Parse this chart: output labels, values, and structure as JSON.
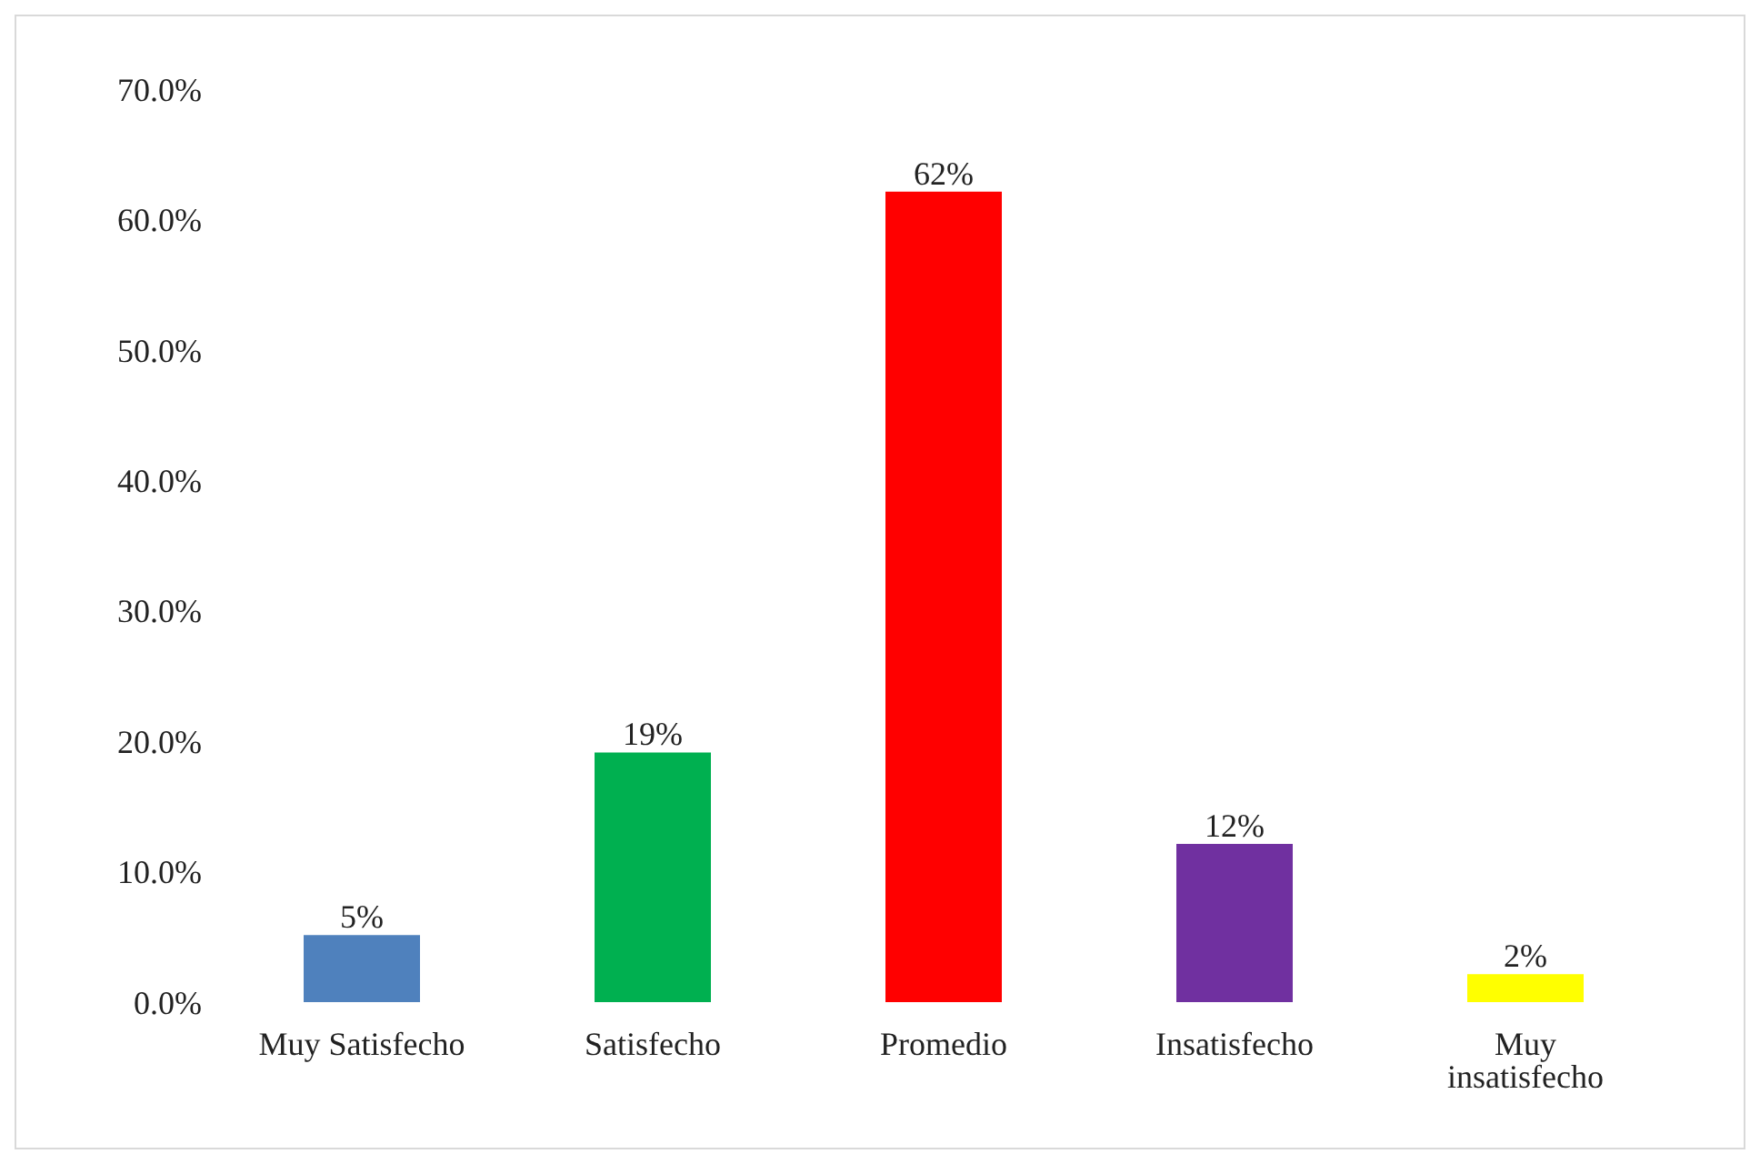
{
  "chart_data": {
    "type": "bar",
    "categories": [
      "Muy Satisfecho",
      "Satisfecho",
      "Promedio",
      "Insatisfecho",
      "Muy insatisfecho"
    ],
    "values": [
      5,
      19,
      62,
      12,
      2
    ],
    "colors": [
      "#4f81bd",
      "#00b050",
      "#ff0000",
      "#7030a0",
      "#ffff00"
    ],
    "value_labels": [
      "5%",
      "19%",
      "62%",
      "12%",
      "2%"
    ],
    "ylim": [
      0,
      70
    ],
    "yticks": [
      {
        "value": 0,
        "label": "0.0%"
      },
      {
        "value": 10,
        "label": "10.0%"
      },
      {
        "value": 20,
        "label": "20.0%"
      },
      {
        "value": 30,
        "label": "30.0%"
      },
      {
        "value": 40,
        "label": "40.0%"
      },
      {
        "value": 50,
        "label": "50.0%"
      },
      {
        "value": 60,
        "label": "60.0%"
      },
      {
        "value": 70,
        "label": "70.0%"
      }
    ],
    "grid": false,
    "legend": false
  }
}
